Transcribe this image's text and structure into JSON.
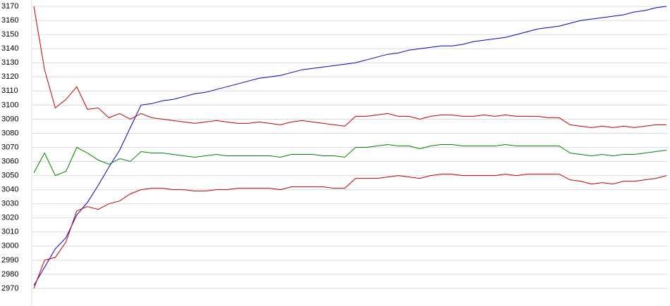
{
  "chart_data": {
    "type": "line",
    "ylim": [
      2961,
      3174
    ],
    "yticks": [
      2970,
      2980,
      2990,
      3000,
      3010,
      3020,
      3030,
      3040,
      3050,
      3060,
      3070,
      3080,
      3090,
      3100,
      3110,
      3120,
      3130,
      3140,
      3150,
      3160,
      3170
    ],
    "grid": true,
    "series": [
      {
        "color": "#0000c0",
        "values": [
          2972,
          2985,
          2998,
          3006,
          3022,
          3031,
          3043,
          3056,
          3068,
          3084,
          3100,
          3101,
          3103,
          3104,
          3106,
          3108,
          3109,
          3111,
          3113,
          3115,
          3117,
          3119,
          3120,
          3121,
          3123,
          3125,
          3126,
          3127,
          3128,
          3129,
          3130,
          3132,
          3134,
          3136,
          3137,
          3139,
          3140,
          3141,
          3142,
          3142,
          3143,
          3145,
          3146,
          3147,
          3148,
          3150,
          3152,
          3154,
          3155,
          3156,
          3158,
          3160,
          3161,
          3162,
          3163,
          3164,
          3166,
          3167,
          3169,
          3170
        ]
      },
      {
        "color": "#c00000",
        "values": [
          3170,
          3125,
          3098,
          3104,
          3113,
          3097,
          3098,
          3091,
          3094,
          3090,
          3094,
          3091,
          3090,
          3089,
          3088,
          3087,
          3088,
          3089,
          3088,
          3087,
          3087,
          3088,
          3087,
          3086,
          3088,
          3089,
          3088,
          3087,
          3086,
          3085,
          3092,
          3092,
          3093,
          3094,
          3092,
          3092,
          3090,
          3092,
          3093,
          3093,
          3092,
          3092,
          3093,
          3092,
          3093,
          3092,
          3092,
          3092,
          3091,
          3091,
          3086,
          3085,
          3084,
          3085,
          3084,
          3085,
          3084,
          3085,
          3086,
          3086
        ]
      },
      {
        "color": "#008000",
        "values": [
          3052,
          3066,
          3050,
          3053,
          3070,
          3066,
          3061,
          3058,
          3062,
          3060,
          3067,
          3066,
          3066,
          3065,
          3064,
          3063,
          3064,
          3065,
          3064,
          3064,
          3064,
          3064,
          3064,
          3063,
          3065,
          3065,
          3065,
          3064,
          3064,
          3063,
          3070,
          3070,
          3071,
          3072,
          3071,
          3071,
          3069,
          3071,
          3072,
          3072,
          3071,
          3071,
          3071,
          3071,
          3072,
          3071,
          3071,
          3071,
          3071,
          3071,
          3066,
          3065,
          3064,
          3065,
          3064,
          3065,
          3065,
          3066,
          3067,
          3068
        ]
      },
      {
        "color": "#c00000",
        "values": [
          2970,
          2990,
          2992,
          3003,
          3025,
          3028,
          3026,
          3030,
          3032,
          3037,
          3040,
          3041,
          3041,
          3040,
          3040,
          3039,
          3039,
          3040,
          3040,
          3041,
          3041,
          3041,
          3041,
          3040,
          3042,
          3042,
          3042,
          3042,
          3041,
          3041,
          3048,
          3048,
          3048,
          3049,
          3050,
          3049,
          3048,
          3050,
          3051,
          3051,
          3050,
          3050,
          3050,
          3050,
          3051,
          3050,
          3051,
          3051,
          3051,
          3051,
          3047,
          3046,
          3044,
          3045,
          3044,
          3046,
          3046,
          3047,
          3048,
          3050
        ]
      }
    ]
  }
}
